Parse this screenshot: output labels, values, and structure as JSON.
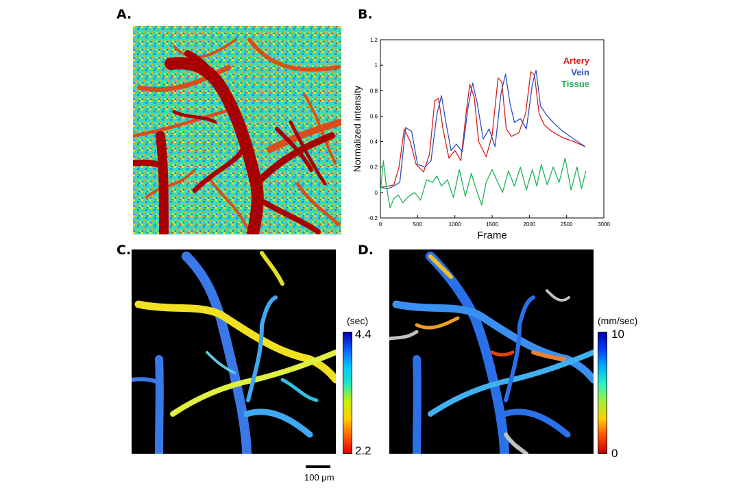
{
  "panels": {
    "a": {
      "label": "A."
    },
    "b": {
      "label": "B."
    },
    "c": {
      "label": "C.",
      "colorbar": {
        "unit": "(sec)",
        "max": "4.4",
        "min": "2.2",
        "colors": [
          "#0000b0",
          "#1060ff",
          "#00c8ff",
          "#20e8c0",
          "#c8f000",
          "#ffd000",
          "#ff6000",
          "#e00000"
        ]
      }
    },
    "d": {
      "label": "D.",
      "colorbar": {
        "unit": "(mm/sec)",
        "max": "10",
        "min": "0",
        "colors": [
          "#0000a0",
          "#0040ff",
          "#00b0ff",
          "#30f0c0",
          "#a0f040",
          "#ffd000",
          "#ff5000",
          "#c00000"
        ]
      }
    }
  },
  "scale_bar": {
    "label": "100 μm"
  },
  "colors": {
    "artery": "#d91c1c",
    "vein": "#2b50c0",
    "tissue": "#1db356",
    "map_background": "#40d8b0",
    "map_vessel": "#a00000",
    "black": "#000000"
  },
  "chart_data": {
    "type": "line",
    "title": "",
    "xlabel": "Frame",
    "ylabel": "Normalized intensity",
    "xlim": [
      0,
      3000
    ],
    "ylim": [
      -0.2,
      1.2
    ],
    "xticks": [
      "0",
      "500",
      "1000",
      "1500",
      "2000",
      "2500",
      "3000"
    ],
    "yticks": [
      "-0.2",
      "0",
      "0.2",
      "0.4",
      "0.6",
      "0.8",
      "1",
      "1.2"
    ],
    "grid": false,
    "legend": "top-right",
    "series": [
      {
        "name": "Artery",
        "color": "#d91c1c",
        "x": [
          0,
          100,
          180,
          250,
          320,
          400,
          480,
          580,
          660,
          730,
          780,
          840,
          920,
          1000,
          1080,
          1150,
          1200,
          1260,
          1320,
          1420,
          1500,
          1580,
          1630,
          1690,
          1760,
          1860,
          1950,
          2020,
          2070,
          2130,
          2200,
          2300,
          2450,
          2600,
          2750
        ],
        "y": [
          0.04,
          0.05,
          0.06,
          0.2,
          0.5,
          0.4,
          0.22,
          0.16,
          0.3,
          0.72,
          0.74,
          0.5,
          0.27,
          0.33,
          0.25,
          0.62,
          0.85,
          0.75,
          0.4,
          0.28,
          0.45,
          0.9,
          0.87,
          0.5,
          0.44,
          0.47,
          0.62,
          0.95,
          0.92,
          0.62,
          0.53,
          0.48,
          0.43,
          0.4,
          0.36
        ]
      },
      {
        "name": "Vein",
        "color": "#2b50c0",
        "x": [
          0,
          100,
          180,
          260,
          340,
          420,
          500,
          600,
          680,
          760,
          820,
          880,
          950,
          1020,
          1100,
          1180,
          1240,
          1300,
          1380,
          1460,
          1540,
          1620,
          1680,
          1740,
          1800,
          1880,
          1960,
          2040,
          2090,
          2150,
          2230,
          2320,
          2450,
          2600,
          2750
        ],
        "y": [
          0.04,
          0.03,
          0.05,
          0.08,
          0.51,
          0.48,
          0.22,
          0.2,
          0.25,
          0.62,
          0.76,
          0.55,
          0.33,
          0.38,
          0.32,
          0.68,
          0.86,
          0.7,
          0.42,
          0.5,
          0.36,
          0.78,
          0.93,
          0.7,
          0.55,
          0.58,
          0.5,
          0.85,
          0.96,
          0.68,
          0.61,
          0.55,
          0.48,
          0.42,
          0.36
        ]
      },
      {
        "name": "Tissue",
        "color": "#1db356",
        "x": [
          0,
          40,
          80,
          130,
          180,
          240,
          300,
          380,
          460,
          540,
          620,
          700,
          760,
          820,
          900,
          980,
          1060,
          1140,
          1220,
          1300,
          1360,
          1420,
          1500,
          1560,
          1640,
          1720,
          1800,
          1880,
          1960,
          2040,
          2100,
          2160,
          2240,
          2320,
          2400,
          2480,
          2560,
          2640,
          2700,
          2760
        ],
        "y": [
          0.0,
          0.25,
          0.05,
          -0.12,
          -0.05,
          -0.02,
          -0.08,
          -0.03,
          0.0,
          -0.06,
          0.1,
          0.08,
          0.13,
          0.05,
          0.1,
          -0.04,
          0.18,
          -0.03,
          0.15,
          0.0,
          -0.1,
          0.08,
          0.18,
          0.1,
          0.0,
          0.17,
          0.05,
          0.2,
          0.02,
          0.18,
          0.05,
          0.22,
          0.06,
          0.2,
          0.08,
          0.27,
          0.02,
          0.2,
          0.03,
          0.17
        ]
      }
    ]
  }
}
